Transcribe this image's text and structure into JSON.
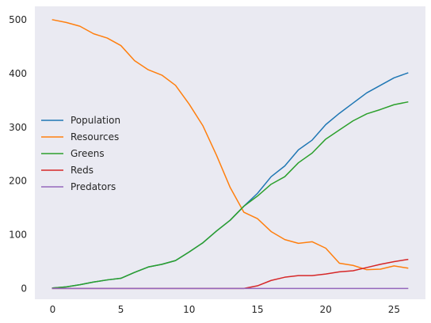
{
  "chart_data": {
    "type": "line",
    "title": "",
    "xlabel": "",
    "ylabel": "",
    "xlim": [
      -1.3,
      27.3
    ],
    "ylim": [
      -20,
      525
    ],
    "grid": false,
    "background": "#eaeaf2",
    "legend_position": "center-left",
    "xticks": [
      0,
      5,
      10,
      15,
      20,
      25
    ],
    "yticks": [
      0,
      100,
      200,
      300,
      400,
      500
    ],
    "x": [
      0,
      1,
      2,
      3,
      4,
      5,
      6,
      7,
      8,
      9,
      10,
      11,
      12,
      13,
      14,
      15,
      16,
      17,
      18,
      19,
      20,
      21,
      22,
      23,
      24,
      25,
      26
    ],
    "series": [
      {
        "name": "Population",
        "color": "#1f77b4",
        "values": [
          1,
          3,
          7,
          12,
          16,
          19,
          30,
          40,
          45,
          52,
          68,
          85,
          107,
          127,
          153,
          177,
          208,
          228,
          258,
          276,
          305,
          326,
          345,
          364,
          378,
          392,
          401
        ]
      },
      {
        "name": "Resources",
        "color": "#ff7f0e",
        "values": [
          500,
          495,
          488,
          474,
          466,
          452,
          424,
          407,
          397,
          378,
          343,
          303,
          248,
          188,
          142,
          130,
          106,
          91,
          84,
          87,
          75,
          47,
          43,
          35,
          36,
          42,
          38
        ]
      },
      {
        "name": "Greens",
        "color": "#2ca02c",
        "values": [
          1,
          3,
          7,
          12,
          16,
          19,
          30,
          40,
          45,
          52,
          68,
          85,
          107,
          127,
          153,
          172,
          194,
          208,
          234,
          252,
          278,
          295,
          312,
          325,
          333,
          342,
          347
        ]
      },
      {
        "name": "Reds",
        "color": "#d62728",
        "values": [
          0,
          0,
          0,
          0,
          0,
          0,
          0,
          0,
          0,
          0,
          0,
          0,
          0,
          0,
          0,
          5,
          15,
          21,
          24,
          24,
          27,
          31,
          33,
          39,
          45,
          50,
          54
        ]
      },
      {
        "name": "Predators",
        "color": "#9467bd",
        "values": [
          0,
          0,
          0,
          0,
          0,
          0,
          0,
          0,
          0,
          0,
          0,
          0,
          0,
          0,
          0,
          0,
          0,
          0,
          0,
          0,
          0,
          0,
          0,
          0,
          0,
          0,
          0
        ]
      }
    ]
  }
}
